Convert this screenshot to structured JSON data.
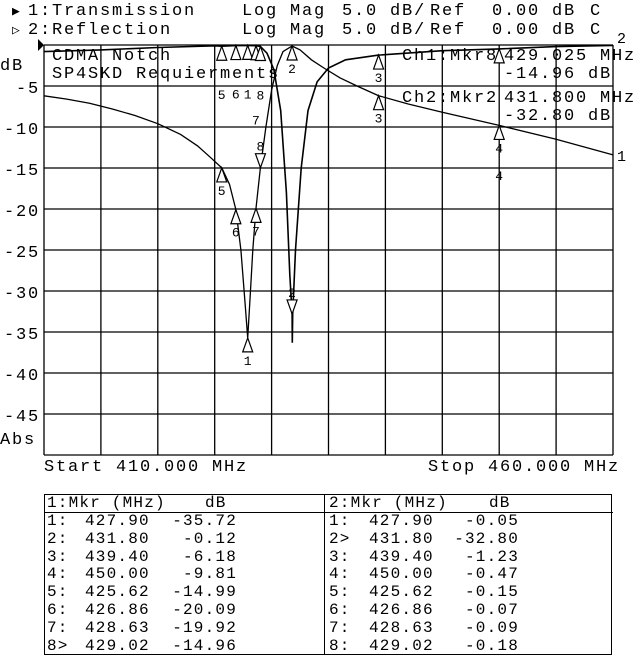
{
  "header": {
    "ch1": {
      "icon": "filled-triangle",
      "label": "1:Transmission",
      "format": "Log Mag",
      "scale": "5.0 dB/",
      "ref_label": "Ref",
      "ref": "0.00 dB",
      "flag": "C"
    },
    "ch2": {
      "icon": "hollow-triangle",
      "label": "2:Reflection",
      "format": "Log Mag",
      "scale": "5.0 dB/",
      "ref_label": "Ref",
      "ref": "0.00 dB",
      "flag": "C"
    }
  },
  "annotation": {
    "line1": "CDMA Notch",
    "line2": "SP4SKD Requierments"
  },
  "readout": {
    "ch1_label": "Ch1:Mkr8",
    "ch1_freq": "429.025 MHz",
    "ch1_value": "-14.96 dB",
    "ch2_label": "Ch2:Mkr2",
    "ch2_freq": "431.800 MHz",
    "ch2_value": "-32.80 dB"
  },
  "axis": {
    "unit": "dB",
    "mode": "Abs",
    "start": "Start 410.000 MHz",
    "stop": "Stop 460.000 MHz"
  },
  "chart_data": {
    "type": "line",
    "xlim": [
      410,
      460
    ],
    "ylim": [
      -50,
      0
    ],
    "yticks": [
      -5,
      -10,
      -15,
      -20,
      -25,
      -30,
      -35,
      -40,
      -45
    ],
    "ytick_labels": [
      "-5",
      "-10",
      "-15",
      "-20",
      "-25",
      "-30",
      "-35",
      "-40",
      "-45"
    ],
    "grid": true,
    "series": [
      {
        "name": "1",
        "x": [
          410,
          412,
          414,
          416,
          418,
          420,
          422,
          423.5,
          424.7,
          425.62,
          426.3,
          426.86,
          427.3,
          427.7,
          427.9,
          428.1,
          428.35,
          428.63,
          429.02,
          429.5,
          430,
          430.5,
          431,
          431.8,
          432.5,
          433.5,
          434.6,
          436,
          437.5,
          439.4,
          442,
          445,
          450,
          455,
          460
        ],
        "y": [
          -6.2,
          -6.6,
          -7.1,
          -7.8,
          -8.6,
          -9.6,
          -10.9,
          -12.3,
          -13.8,
          -14.99,
          -17,
          -20.09,
          -25,
          -32,
          -35.72,
          -31,
          -25,
          -19.92,
          -14.96,
          -10,
          -5.5,
          -2.5,
          -0.8,
          -0.12,
          -0.6,
          -1.8,
          -2.8,
          -4,
          -5,
          -6.18,
          -7.2,
          -8.2,
          -9.81,
          -11.5,
          -13.4
        ]
      },
      {
        "name": "2",
        "x": [
          410,
          415,
          420,
          425,
          425.62,
          426.86,
          427.9,
          428.63,
          429.02,
          429.6,
          430.2,
          430.8,
          431.3,
          431.6,
          431.8,
          431.82,
          431.85,
          432.1,
          432.6,
          433.2,
          434,
          435,
          436.5,
          439.4,
          445,
          450,
          455,
          460
        ],
        "y": [
          -0.8,
          -0.6,
          -0.3,
          -0.1,
          -0.15,
          -0.07,
          -0.05,
          -0.09,
          -0.18,
          -1,
          -3,
          -8,
          -18,
          -28,
          -32.8,
          -36.3,
          -32.8,
          -25,
          -15,
          -8,
          -4.5,
          -2.8,
          -1.8,
          -1.23,
          -0.7,
          -0.47,
          -0.2,
          -0.05
        ]
      }
    ],
    "active_markers": {
      "1": "8",
      "2": "2"
    }
  },
  "table": {
    "ch1": {
      "header_mkr": "1:Mkr (MHz)",
      "header_db": "dB",
      "rows": [
        {
          "id": "1:",
          "freq": "427.90",
          "db": "-35.72"
        },
        {
          "id": "2:",
          "freq": "431.80",
          "db": "-0.12"
        },
        {
          "id": "3:",
          "freq": "439.40",
          "db": "-6.18"
        },
        {
          "id": "4:",
          "freq": "450.00",
          "db": "-9.81"
        },
        {
          "id": "5:",
          "freq": "425.62",
          "db": "-14.99"
        },
        {
          "id": "6:",
          "freq": "426.86",
          "db": "-20.09"
        },
        {
          "id": "7:",
          "freq": "428.63",
          "db": "-19.92"
        },
        {
          "id": "8>",
          "freq": "429.02",
          "db": "-14.96"
        }
      ]
    },
    "ch2": {
      "header_mkr": "2:Mkr (MHz)",
      "header_db": "dB",
      "rows": [
        {
          "id": "1:",
          "freq": "427.90",
          "db": "-0.05"
        },
        {
          "id": "2>",
          "freq": "431.80",
          "db": "-32.80"
        },
        {
          "id": "3:",
          "freq": "439.40",
          "db": "-1.23"
        },
        {
          "id": "4:",
          "freq": "450.00",
          "db": "-0.47"
        },
        {
          "id": "5:",
          "freq": "425.62",
          "db": "-0.15"
        },
        {
          "id": "6:",
          "freq": "426.86",
          "db": "-0.07"
        },
        {
          "id": "7:",
          "freq": "428.63",
          "db": "-0.09"
        },
        {
          "id": "8:",
          "freq": "429.02",
          "db": "-0.18"
        }
      ]
    }
  }
}
